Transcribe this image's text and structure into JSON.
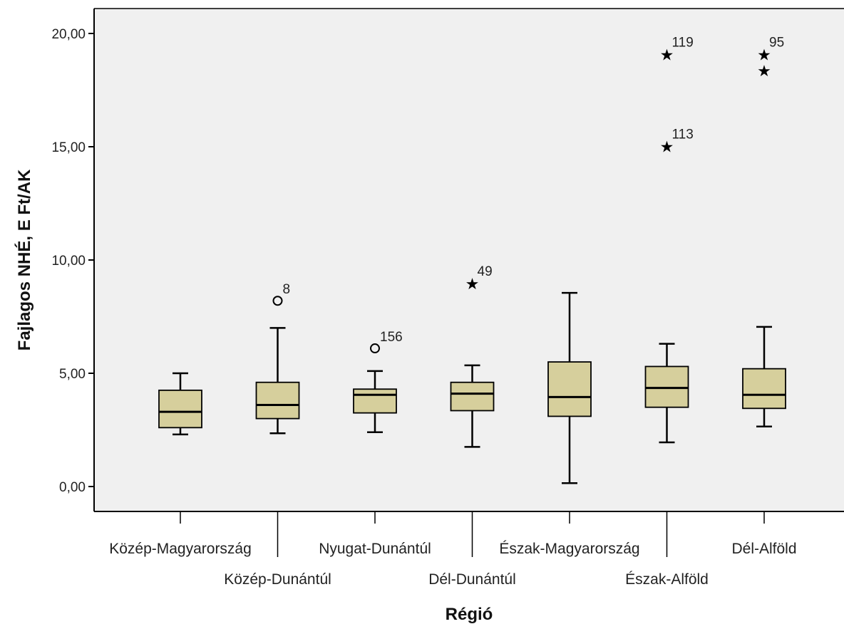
{
  "chart_data": {
    "type": "boxplot",
    "xlabel": "Régió",
    "ylabel": "Fajlagos NHÉ, E Ft/AK",
    "ylim": [
      -1.1,
      21.1
    ],
    "yticks": [
      0,
      5,
      10,
      15,
      20
    ],
    "ytick_labels": [
      "0,00",
      "5,00",
      "10,00",
      "15,00",
      "20,00"
    ],
    "grid": false,
    "colors": {
      "box_fill": "#d6cf9c",
      "plot_bg": "#f0f0f0",
      "stroke": "#000000"
    },
    "categories": [
      "Közép-Magyarország",
      "Közép-Dunántúl",
      "Nyugat-Dunántúl",
      "Dél-Dunántúl",
      "Észak-Magyarország",
      "Észak-Alföld",
      "Dél-Alföld"
    ],
    "boxes": [
      {
        "min": 2.3,
        "q1": 2.6,
        "median": 3.3,
        "q3": 4.25,
        "max": 5.0,
        "outliers": []
      },
      {
        "min": 2.35,
        "q1": 3.0,
        "median": 3.6,
        "q3": 4.6,
        "max": 7.0,
        "outliers": [
          {
            "value": 8.2,
            "marker": "circle",
            "label": "8"
          }
        ]
      },
      {
        "min": 2.4,
        "q1": 3.25,
        "median": 4.05,
        "q3": 4.3,
        "max": 5.1,
        "outliers": [
          {
            "value": 6.1,
            "marker": "circle",
            "label": "156"
          }
        ]
      },
      {
        "min": 1.75,
        "q1": 3.35,
        "median": 4.1,
        "q3": 4.6,
        "max": 5.35,
        "outliers": [
          {
            "value": 9.0,
            "marker": "star",
            "label": "49"
          }
        ]
      },
      {
        "min": 0.15,
        "q1": 3.1,
        "median": 3.95,
        "q3": 5.5,
        "max": 8.55,
        "outliers": []
      },
      {
        "min": 1.95,
        "q1": 3.5,
        "median": 4.35,
        "q3": 5.3,
        "max": 6.3,
        "outliers": [
          {
            "value": 19.1,
            "marker": "star",
            "label": "119"
          },
          {
            "value": 15.05,
            "marker": "star",
            "label": "113"
          }
        ]
      },
      {
        "min": 2.65,
        "q1": 3.45,
        "median": 4.05,
        "q3": 5.2,
        "max": 7.05,
        "outliers": [
          {
            "value": 19.1,
            "marker": "star",
            "label": "95"
          },
          {
            "value": 18.4,
            "marker": "star",
            "label": ""
          }
        ]
      }
    ]
  }
}
